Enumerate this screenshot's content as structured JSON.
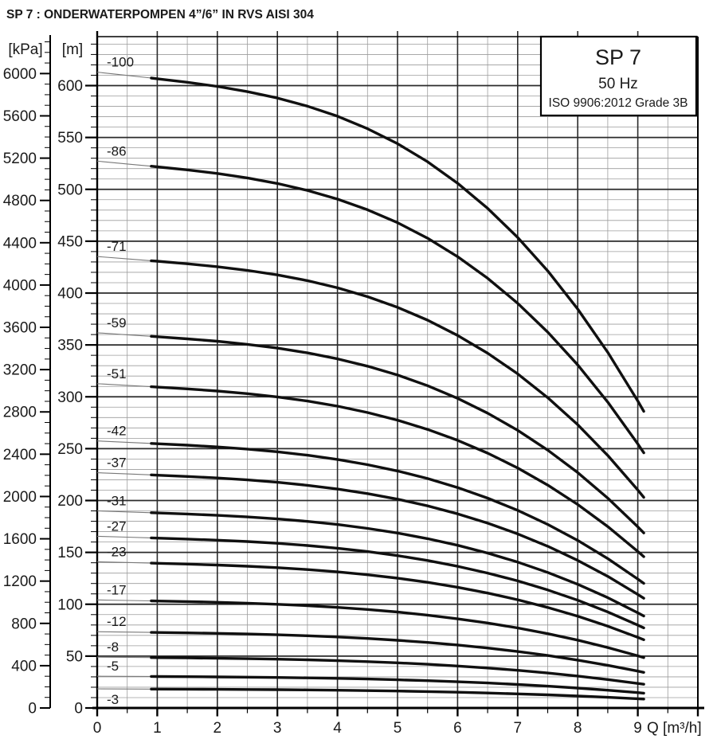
{
  "title": "SP 7 : ONDERWATERPOMPEN 4”/6” IN RVS AISI 304",
  "legend": {
    "model": "SP 7",
    "frequency": "50 Hz",
    "standard": "ISO 9906:2012 Grade 3B"
  },
  "chart_data": {
    "type": "line",
    "xlabel": "Q [m³/h]",
    "x_axis": {
      "label": "Q [m³/h]",
      "tick_labels": [
        0,
        1,
        2,
        3,
        4,
        5,
        6,
        7,
        8,
        9
      ],
      "minor_step": 0.5,
      "grid_max": 10
    },
    "kpa_axis": {
      "label": "[kPa]",
      "tick_labels": [
        6000,
        5600,
        5200,
        4800,
        4400,
        4000,
        3600,
        3200,
        2800,
        2400,
        2000,
        1600,
        1200,
        800,
        400,
        0
      ],
      "major_step": 400,
      "minor_step": 100,
      "minor_max": 6300
    },
    "m_axis": {
      "label": "[m]",
      "tick_labels": [
        600,
        550,
        500,
        450,
        400,
        350,
        300,
        250,
        200,
        150,
        100,
        50,
        0
      ],
      "major_step": 50,
      "minor_step": 10,
      "minor_max": 640
    },
    "flow_range_m3h": [
      0,
      9.1
    ],
    "thick_from_q": 0.9,
    "q_samples": [
      0,
      0.5,
      0.9,
      1,
      1.5,
      2,
      2.5,
      3,
      3.5,
      4,
      4.5,
      5,
      5.5,
      6,
      6.5,
      7,
      7.5,
      8,
      8.5,
      9,
      9.1
    ],
    "per_stage_head_m": [
      6.13,
      6.098,
      6.073,
      6.066,
      6.032,
      5.992,
      5.942,
      5.88,
      5.802,
      5.705,
      5.585,
      5.44,
      5.266,
      5.059,
      4.817,
      4.537,
      4.214,
      3.846,
      3.429,
      2.96,
      2.86
    ],
    "series": [
      {
        "label": "-100",
        "stages": 100,
        "shutoff_head_m": 613,
        "head_at_max_flow_m": 286,
        "label_below_curve": false
      },
      {
        "label": "-86",
        "stages": 86,
        "shutoff_head_m": 527,
        "head_at_max_flow_m": 246,
        "label_below_curve": false
      },
      {
        "label": "-71",
        "stages": 71,
        "shutoff_head_m": 435,
        "head_at_max_flow_m": 203,
        "label_below_curve": false
      },
      {
        "label": "-59",
        "stages": 59,
        "shutoff_head_m": 362,
        "head_at_max_flow_m": 169,
        "label_below_curve": false
      },
      {
        "label": "-51",
        "stages": 51,
        "shutoff_head_m": 313,
        "head_at_max_flow_m": 146,
        "label_below_curve": false
      },
      {
        "label": "-42",
        "stages": 42,
        "shutoff_head_m": 257,
        "head_at_max_flow_m": 120,
        "label_below_curve": false
      },
      {
        "label": "-37",
        "stages": 37,
        "shutoff_head_m": 227,
        "head_at_max_flow_m": 106,
        "label_below_curve": false
      },
      {
        "label": "-31",
        "stages": 31,
        "shutoff_head_m": 190,
        "head_at_max_flow_m": 89,
        "label_below_curve": false
      },
      {
        "label": "-27",
        "stages": 27,
        "shutoff_head_m": 166,
        "head_at_max_flow_m": 77,
        "label_below_curve": false
      },
      {
        "label": "-23",
        "stages": 23,
        "shutoff_head_m": 141,
        "head_at_max_flow_m": 66,
        "label_below_curve": false
      },
      {
        "label": "-17",
        "stages": 17,
        "shutoff_head_m": 104,
        "head_at_max_flow_m": 49,
        "label_below_curve": false
      },
      {
        "label": "-12",
        "stages": 12,
        "shutoff_head_m": 74,
        "head_at_max_flow_m": 34,
        "label_below_curve": false
      },
      {
        "label": "-8",
        "stages": 8,
        "shutoff_head_m": 49,
        "head_at_max_flow_m": 23,
        "label_below_curve": false
      },
      {
        "label": "-5",
        "stages": 5,
        "shutoff_head_m": 31,
        "head_at_max_flow_m": 14,
        "label_below_curve": false
      },
      {
        "label": "-3",
        "stages": 3,
        "shutoff_head_m": 18,
        "head_at_max_flow_m": 9,
        "label_below_curve": true
      }
    ],
    "colors": {
      "curve": "#101010",
      "curve_thin": "#787878",
      "grid_minor": "#9c9c9c",
      "grid_major": "#2b2b2b",
      "axis": "#000000"
    },
    "legend_position": "top-right",
    "grid": true
  }
}
